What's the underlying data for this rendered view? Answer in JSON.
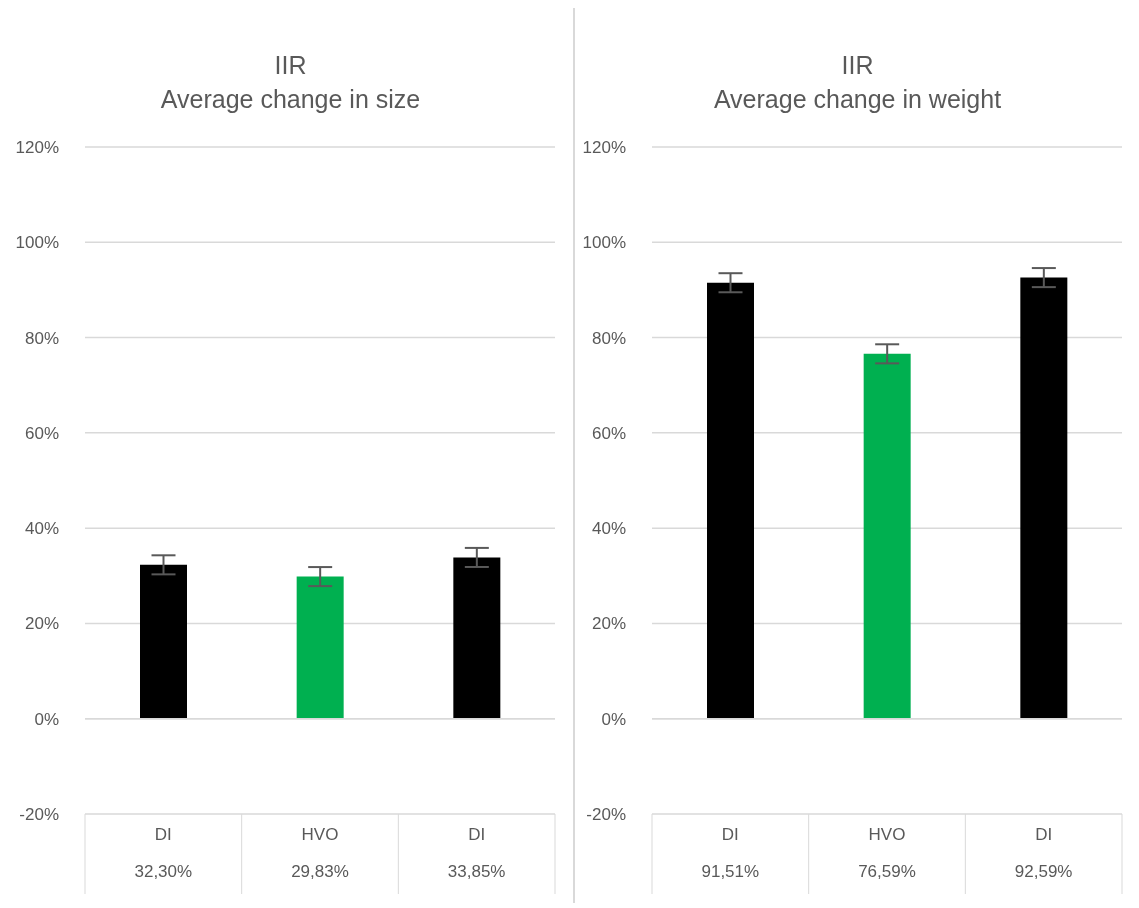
{
  "chart_data": [
    {
      "type": "bar",
      "title": "IIR",
      "subtitle": "Average change in size",
      "categories": [
        "DI",
        "HVO",
        "DI"
      ],
      "values": [
        32.3,
        29.83,
        33.85
      ],
      "colors": [
        "#000000",
        "#00b050",
        "#000000"
      ],
      "errors": [
        2,
        2,
        2
      ],
      "value_labels": [
        "32,30%",
        "29,83%",
        "33,85%"
      ],
      "ylim": [
        -20,
        120
      ],
      "yticks": [
        {
          "value": -20,
          "label": "-20%"
        },
        {
          "value": 0,
          "label": "0%"
        },
        {
          "value": 20,
          "label": "20%"
        },
        {
          "value": 40,
          "label": "40%"
        },
        {
          "value": 60,
          "label": "60%"
        },
        {
          "value": 80,
          "label": "80%"
        },
        {
          "value": 100,
          "label": "100%"
        },
        {
          "value": 120,
          "label": "120%"
        }
      ],
      "grid": "y",
      "legend": false
    },
    {
      "type": "bar",
      "title": "IIR",
      "subtitle": "Average change in weight",
      "categories": [
        "DI",
        "HVO",
        "DI"
      ],
      "values": [
        91.51,
        76.59,
        92.59
      ],
      "colors": [
        "#000000",
        "#00b050",
        "#000000"
      ],
      "errors": [
        2,
        2,
        2
      ],
      "value_labels": [
        "91,51%",
        "76,59%",
        "92,59%"
      ],
      "ylim": [
        -20,
        120
      ],
      "yticks": [
        {
          "value": -20,
          "label": "-20%"
        },
        {
          "value": 0,
          "label": "0%"
        },
        {
          "value": 20,
          "label": "20%"
        },
        {
          "value": 40,
          "label": "40%"
        },
        {
          "value": 60,
          "label": "60%"
        },
        {
          "value": 80,
          "label": "80%"
        },
        {
          "value": 100,
          "label": "100%"
        },
        {
          "value": 120,
          "label": "120%"
        }
      ],
      "grid": "y",
      "legend": false
    }
  ]
}
